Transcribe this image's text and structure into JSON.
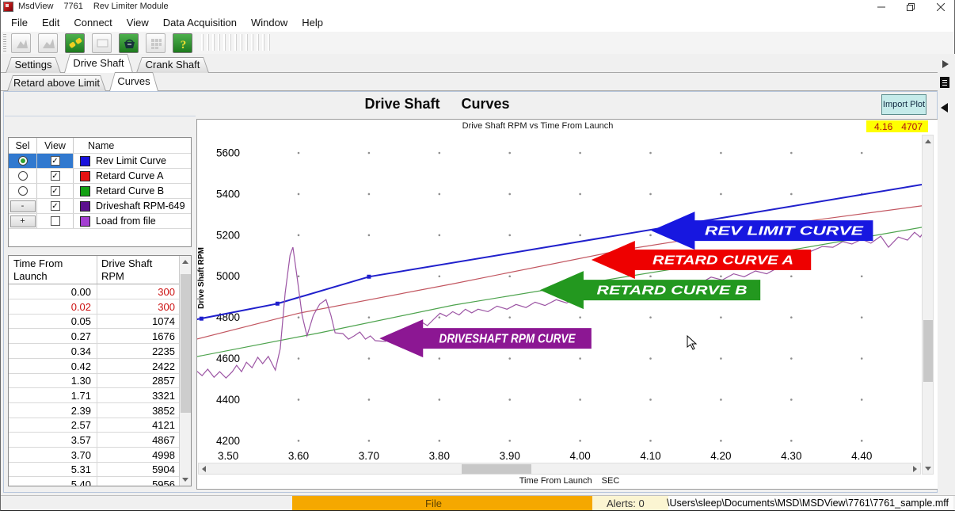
{
  "window": {
    "app": "MsdView",
    "model": "7761",
    "module": "Rev Limiter Module",
    "controls": [
      "minimize",
      "maximize",
      "close"
    ]
  },
  "menu": {
    "items": [
      "File",
      "Edit",
      "Connect",
      "View",
      "Data Acquisition",
      "Window",
      "Help"
    ]
  },
  "toolbar": {
    "icons": [
      "new-file",
      "open-file",
      "connect",
      "monitor",
      "save-data",
      "gauges",
      "help"
    ]
  },
  "tabs": {
    "items": [
      "Settings",
      "Drive Shaft",
      "Crank Shaft"
    ],
    "active": 1
  },
  "subtabs": {
    "items": [
      "Retard above Limit",
      "Curves"
    ],
    "active": 1
  },
  "page": {
    "title_left": "Drive Shaft",
    "title_right": "Curves",
    "import_button": "Import Plot"
  },
  "legend": {
    "headers": [
      "Sel",
      "View",
      "Name"
    ],
    "rows": [
      {
        "sel": "radio-on",
        "view": true,
        "color": "#1a12dd",
        "name": "Rev Limit Curve",
        "highlight": true,
        "focus": true
      },
      {
        "sel": "radio-off",
        "view": true,
        "color": "#e51212",
        "name": "Retard Curve A"
      },
      {
        "sel": "radio-off",
        "view": true,
        "color": "#13a013",
        "name": "Retard Curve B"
      },
      {
        "sel": "minus",
        "view": true,
        "color": "#5c0f8e",
        "name": "Driveshaft RPM-649"
      },
      {
        "sel": "plus",
        "view": false,
        "color": "#a43fd2",
        "name": "Load from file"
      }
    ],
    "minus_label": "-",
    "plus_label": "+"
  },
  "data_table": {
    "headers": [
      [
        "Time From",
        "Launch"
      ],
      [
        "Drive Shaft",
        "RPM"
      ]
    ],
    "rows": [
      {
        "t": "0.00",
        "rpm": "300",
        "t_red": false,
        "rpm_red": true
      },
      {
        "t": "0.02",
        "rpm": "300",
        "t_red": true,
        "rpm_red": true
      },
      {
        "t": "0.05",
        "rpm": "1074"
      },
      {
        "t": "0.27",
        "rpm": "1676"
      },
      {
        "t": "0.34",
        "rpm": "2235"
      },
      {
        "t": "0.42",
        "rpm": "2422"
      },
      {
        "t": "1.30",
        "rpm": "2857"
      },
      {
        "t": "1.71",
        "rpm": "3321"
      },
      {
        "t": "2.39",
        "rpm": "3852"
      },
      {
        "t": "2.57",
        "rpm": "4121"
      },
      {
        "t": "3.57",
        "rpm": "4867"
      },
      {
        "t": "3.70",
        "rpm": "4998"
      },
      {
        "t": "5.31",
        "rpm": "5904"
      },
      {
        "t": "5.40",
        "rpm": "5956"
      }
    ]
  },
  "chart_data": {
    "type": "line",
    "title": "Drive Shaft RPM  vs  Time From Launch",
    "readout": {
      "time": "4.16",
      "rpm": "4707"
    },
    "xlabel": "Time From Launch",
    "x_unit": "SEC",
    "ylabel": "Drive Shaft RPM",
    "x_ticks": [
      3.5,
      3.6,
      3.7,
      3.8,
      3.9,
      4.0,
      4.1,
      4.2,
      4.3,
      4.4
    ],
    "y_ticks": [
      4200,
      4400,
      4600,
      4800,
      5000,
      5200,
      5400,
      5600
    ],
    "x_range": [
      3.456,
      4.507
    ],
    "y_range": [
      3969,
      5762
    ],
    "grid_dot_x": [
      3.6,
      3.7,
      3.8,
      3.9,
      4.0,
      4.1,
      4.2,
      4.3,
      4.4,
      4.5
    ],
    "series": [
      {
        "name": "Rev Limit Curve",
        "color": "#2020cc",
        "width": 2,
        "points": [
          [
            3.455,
            4790
          ],
          [
            3.57,
            4867
          ],
          [
            3.7,
            4998
          ],
          [
            4.492,
            5450
          ]
        ],
        "markers": [
          [
            3.462,
            4794
          ],
          [
            3.57,
            4867
          ],
          [
            3.7,
            4998
          ]
        ]
      },
      {
        "name": "Retard Curve A",
        "color": "#c25660",
        "width": 1.2,
        "points": [
          [
            3.455,
            4694
          ],
          [
            3.6,
            4820
          ],
          [
            3.82,
            4964
          ],
          [
            4.06,
            5128
          ],
          [
            4.3,
            5258
          ],
          [
            4.492,
            5346
          ]
        ]
      },
      {
        "name": "Retard Curve B",
        "color": "#4da34d",
        "width": 1.2,
        "points": [
          [
            3.455,
            4609
          ],
          [
            3.63,
            4725
          ],
          [
            3.82,
            4860
          ],
          [
            4.06,
            4995
          ],
          [
            4.3,
            5128
          ],
          [
            4.492,
            5242
          ]
        ]
      },
      {
        "name": "Driveshaft RPM-649",
        "color": "#9c55a4",
        "width": 1.2,
        "points": [
          [
            3.455,
            4540
          ],
          [
            3.463,
            4517
          ],
          [
            3.471,
            4548
          ],
          [
            3.48,
            4509
          ],
          [
            3.488,
            4536
          ],
          [
            3.497,
            4505
          ],
          [
            3.506,
            4536
          ],
          [
            3.512,
            4567
          ],
          [
            3.519,
            4536
          ],
          [
            3.526,
            4582
          ],
          [
            3.534,
            4555
          ],
          [
            3.542,
            4606
          ],
          [
            3.549,
            4575
          ],
          [
            3.557,
            4610
          ],
          [
            3.567,
            4544
          ],
          [
            3.574,
            4648
          ],
          [
            3.581,
            4918
          ],
          [
            3.588,
            5103
          ],
          [
            3.592,
            5141
          ],
          [
            3.598,
            4995
          ],
          [
            3.605,
            4810
          ],
          [
            3.612,
            4710
          ],
          [
            3.621,
            4810
          ],
          [
            3.63,
            4864
          ],
          [
            3.639,
            4887
          ],
          [
            3.646,
            4810
          ],
          [
            3.652,
            4725
          ],
          [
            3.663,
            4721
          ],
          [
            3.671,
            4694
          ],
          [
            3.679,
            4710
          ],
          [
            3.687,
            4729
          ],
          [
            3.695,
            4694
          ],
          [
            3.702,
            4710
          ],
          [
            3.709,
            4687
          ],
          [
            3.723,
            4683
          ],
          [
            3.736,
            4703
          ],
          [
            3.75,
            4692
          ],
          [
            3.756,
            4752
          ],
          [
            3.765,
            4736
          ],
          [
            3.774,
            4779
          ],
          [
            3.783,
            4760
          ],
          [
            3.792,
            4791
          ],
          [
            3.801,
            4820
          ],
          [
            3.81,
            4805
          ],
          [
            3.819,
            4828
          ],
          [
            3.828,
            4812
          ],
          [
            3.837,
            4840
          ],
          [
            3.846,
            4822
          ],
          [
            3.855,
            4840
          ],
          [
            3.869,
            4828
          ],
          [
            3.882,
            4855
          ],
          [
            3.896,
            4840
          ],
          [
            3.909,
            4863
          ],
          [
            3.923,
            4848
          ],
          [
            3.936,
            4874
          ],
          [
            3.95,
            4858
          ],
          [
            3.966,
            4886
          ],
          [
            3.981,
            4870
          ],
          [
            3.997,
            4900
          ],
          [
            4.013,
            4886
          ],
          [
            4.029,
            4916
          ],
          [
            4.044,
            4902
          ],
          [
            4.06,
            4934
          ],
          [
            4.076,
            4918
          ],
          [
            4.092,
            4950
          ],
          [
            4.107,
            4934
          ],
          [
            4.123,
            4965
          ],
          [
            4.139,
            4950
          ],
          [
            4.155,
            4980
          ],
          [
            4.17,
            4965
          ],
          [
            4.186,
            4996
          ],
          [
            4.202,
            4982
          ],
          [
            4.218,
            5012
          ],
          [
            4.233,
            4998
          ],
          [
            4.249,
            5026
          ],
          [
            4.265,
            5012
          ],
          [
            4.281,
            5042
          ],
          [
            4.296,
            5076
          ],
          [
            4.312,
            5118
          ],
          [
            4.328,
            5122
          ],
          [
            4.344,
            5145
          ],
          [
            4.359,
            5141
          ],
          [
            4.373,
            5168
          ],
          [
            4.386,
            5157
          ],
          [
            4.4,
            5180
          ],
          [
            4.413,
            5161
          ],
          [
            4.427,
            5195
          ],
          [
            4.438,
            5141
          ],
          [
            4.452,
            5191
          ],
          [
            4.465,
            5176
          ],
          [
            4.475,
            5214
          ],
          [
            4.483,
            5191
          ],
          [
            4.492,
            5234
          ]
        ]
      }
    ],
    "annotations": [
      {
        "label": "REV LIMIT CURVE",
        "color": "#1717e0",
        "tip": [
          4.101,
          5222
        ],
        "box_end": 4.416,
        "text_len": 200
      },
      {
        "label": "RETARD CURVE A",
        "color": "#ee0000",
        "tip": [
          4.016,
          5080
        ],
        "box_end": 4.328,
        "text_len": 178
      },
      {
        "label": "RETARD CURVE B",
        "color": "#23981f",
        "tip": [
          3.943,
          4933
        ],
        "box_end": 4.256,
        "text_len": 190
      },
      {
        "label": "DRIVESHAFT RPM CURVE",
        "color": "#8c1793",
        "tip": [
          3.715,
          4698
        ],
        "box_end": 4.016,
        "text_len": 172
      }
    ],
    "legend_position": "left-panel",
    "grid": "dots"
  },
  "status": {
    "file_label": "File",
    "alerts": "Alerts: 0",
    "path": "\\Users\\sleep\\Documents\\MSD\\MSDView\\7761\\7761_sample.mff"
  }
}
